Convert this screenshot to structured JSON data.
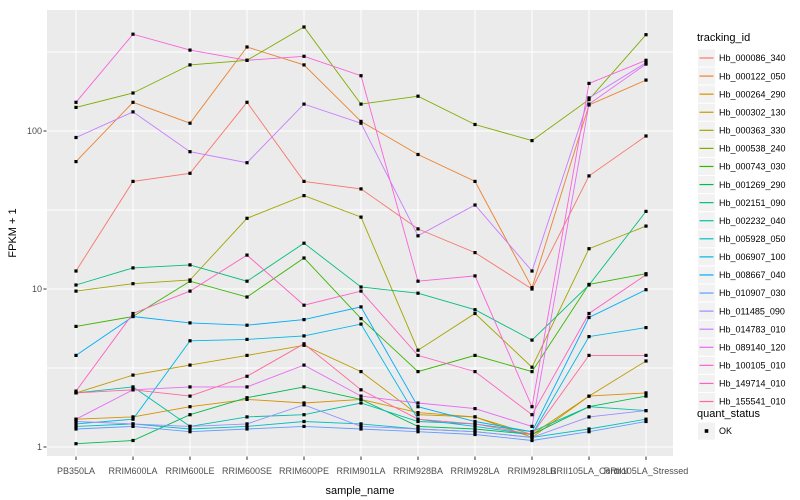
{
  "figure": {
    "background": "#FFFFFF",
    "panel_background": "#EBEBEB",
    "grid_color": "#FFFFFF",
    "axis_text_color": "#4D4D4D",
    "tick_mark_color": "#333333",
    "point_marker_color": "#000000",
    "legend_key_background": "#F2F2F2"
  },
  "legend": {
    "tracking_title": "tracking_id",
    "quant_title": "quant_status",
    "quant_value": "OK"
  },
  "chart_data": {
    "type": "line",
    "x_label": "sample_name",
    "y_label": "FPKM + 1",
    "y_scale": "log10",
    "y_ticks": [
      1,
      10,
      100
    ],
    "y_tick_labels": [
      "1",
      "10",
      "100"
    ],
    "y_minor_ticks": [
      3.1623,
      31.623,
      316.23
    ],
    "ylim_log": [
      0.88,
      580
    ],
    "grid": true,
    "legend_position": "right",
    "point_shape": "filled-square-black",
    "categories": [
      "PB350LA",
      "RRIM600LA",
      "RRIM600LE",
      "RRIM600SE",
      "RRIM600PE",
      "RRIM901LA",
      "RRIM928BA",
      "RRIM928LA",
      "RRIM928LB",
      "RRII105LA_Control",
      "RRII105LA_Stressed"
    ],
    "series": [
      {
        "name": "Hb_000086_340",
        "color": "#F8766D",
        "values": [
          13,
          48,
          54,
          152,
          48,
          43,
          24,
          17,
          10,
          52,
          93
        ]
      },
      {
        "name": "Hb_000122_050",
        "color": "#EA8331",
        "values": [
          64,
          152,
          112,
          340,
          262,
          115,
          71,
          48,
          10.2,
          146,
          210
        ]
      },
      {
        "name": "Hb_000264_290",
        "color": "#D89000",
        "values": [
          1.5,
          1.55,
          1.8,
          2.0,
          1.9,
          2.0,
          1.65,
          1.55,
          1.15,
          2.1,
          2.2
        ]
      },
      {
        "name": "Hb_000302_130",
        "color": "#C09B00",
        "values": [
          2.2,
          2.85,
          3.3,
          3.8,
          4.4,
          3.0,
          1.6,
          1.55,
          1.2,
          2.1,
          3.5
        ]
      },
      {
        "name": "Hb_000363_330",
        "color": "#A3A500",
        "values": [
          9.7,
          10.8,
          11.4,
          28,
          39,
          28.5,
          4.1,
          7.0,
          3.2,
          18,
          25
        ]
      },
      {
        "name": "Hb_000538_240",
        "color": "#7CAE00",
        "values": [
          141,
          174,
          262,
          280,
          455,
          148,
          166,
          110,
          87,
          158,
          407
        ]
      },
      {
        "name": "Hb_000743_030",
        "color": "#39B600",
        "values": [
          5.8,
          6.7,
          11.2,
          8.9,
          15.7,
          6.5,
          3.0,
          3.8,
          3.0,
          10.7,
          12.5
        ]
      },
      {
        "name": "Hb_001269_290",
        "color": "#00BB4E",
        "values": [
          1.05,
          1.1,
          1.6,
          2.05,
          2.4,
          2.0,
          1.35,
          1.3,
          1.2,
          1.8,
          2.1
        ]
      },
      {
        "name": "Hb_002151_090",
        "color": "#00BF7D",
        "values": [
          10.6,
          13.6,
          14.2,
          11.2,
          19.5,
          10.3,
          9.4,
          7.4,
          4.75,
          10.6,
          31
        ]
      },
      {
        "name": "Hb_002232_040",
        "color": "#00C0A7",
        "values": [
          2.2,
          2.4,
          1.35,
          1.55,
          1.6,
          1.9,
          1.45,
          1.4,
          1.25,
          1.8,
          1.7
        ]
      },
      {
        "name": "Hb_005928_050",
        "color": "#00BFC4",
        "values": [
          1.35,
          1.4,
          1.3,
          1.35,
          1.45,
          1.4,
          1.3,
          1.25,
          1.15,
          1.3,
          1.5
        ]
      },
      {
        "name": "Hb_006907_100",
        "color": "#00B8E7",
        "values": [
          1.4,
          1.5,
          4.7,
          4.8,
          5.05,
          6.0,
          1.5,
          1.35,
          1.2,
          5.0,
          5.7
        ]
      },
      {
        "name": "Hb_008667_040",
        "color": "#00ACFC",
        "values": [
          3.8,
          6.7,
          6.1,
          5.9,
          6.4,
          7.7,
          1.8,
          1.45,
          1.25,
          6.6,
          9.9
        ]
      },
      {
        "name": "Hb_010907_030",
        "color": "#619CFF",
        "values": [
          1.3,
          1.35,
          1.25,
          1.3,
          1.35,
          1.3,
          1.25,
          1.2,
          1.1,
          1.25,
          1.45
        ]
      },
      {
        "name": "Hb_011485_090",
        "color": "#9590FF",
        "values": [
          1.45,
          1.4,
          1.35,
          1.4,
          1.85,
          1.35,
          1.3,
          1.25,
          1.15,
          1.55,
          1.7
        ]
      },
      {
        "name": "Hb_014783_010",
        "color": "#C77CFF",
        "values": [
          91,
          132,
          74,
          63,
          148,
          112,
          21.7,
          34,
          13,
          162,
          270
        ]
      },
      {
        "name": "Hb_089140_120",
        "color": "#E76BF3",
        "values": [
          1.5,
          2.3,
          2.4,
          2.4,
          3.3,
          2.1,
          1.9,
          1.75,
          1.35,
          148,
          265
        ]
      },
      {
        "name": "Hb_100105_010",
        "color": "#FA62DB",
        "values": [
          152,
          410,
          325,
          280,
          297,
          224,
          11.2,
          12.1,
          1.8,
          200,
          280
        ]
      },
      {
        "name": "Hb_149714_010",
        "color": "#FF61C3",
        "values": [
          2.26,
          7.0,
          9.7,
          16.4,
          7.9,
          9.7,
          3.8,
          3.0,
          1.6,
          7.0,
          12.3
        ]
      },
      {
        "name": "Hb_155541_010",
        "color": "#FF689F",
        "values": [
          2.2,
          2.3,
          2.1,
          2.8,
          4.5,
          2.3,
          1.5,
          1.4,
          1.2,
          3.8,
          3.8
        ]
      }
    ]
  }
}
